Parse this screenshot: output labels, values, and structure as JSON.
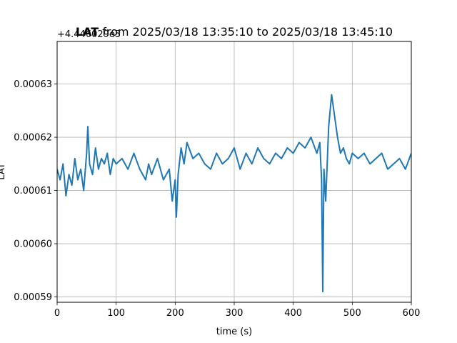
{
  "chart_data": {
    "type": "line",
    "title_bold": "LAT",
    "title_rest": " from 2025/03/18 13:35:10 to 2025/03/18 13:45:10",
    "xlabel": "time (s)",
    "ylabel": "LAT",
    "offset_label": "+4.446029e5",
    "xlim": [
      0,
      600
    ],
    "ylim": [
      0.000589,
      0.000638
    ],
    "x_ticks": [
      0,
      100,
      200,
      300,
      400,
      500,
      600
    ],
    "x_tick_labels": [
      "0",
      "100",
      "200",
      "300",
      "400",
      "500",
      "600"
    ],
    "y_ticks": [
      0.00059,
      0.0006,
      0.00061,
      0.00062,
      0.00063
    ],
    "y_tick_labels": [
      "0.00059",
      "0.00060",
      "0.00061",
      "0.00062",
      "0.00063"
    ],
    "grid": true,
    "line_color": "#1f77b4",
    "series": [
      {
        "x": [
          0,
          5,
          10,
          15,
          20,
          25,
          30,
          35,
          40,
          45,
          50,
          52,
          55,
          60,
          65,
          70,
          75,
          80,
          85,
          90,
          95,
          100,
          110,
          120,
          130,
          140,
          150,
          155,
          160,
          170,
          180,
          190,
          195,
          200,
          202,
          205,
          210,
          215,
          220,
          230,
          240,
          250,
          260,
          270,
          280,
          290,
          300,
          310,
          320,
          330,
          340,
          350,
          360,
          370,
          380,
          390,
          400,
          410,
          420,
          430,
          440,
          445,
          448,
          450,
          452,
          455,
          460,
          465,
          470,
          475,
          480,
          485,
          490,
          495,
          500,
          510,
          520,
          530,
          540,
          550,
          560,
          570,
          580,
          590,
          600
        ],
        "values": [
          0.000614,
          0.000612,
          0.000615,
          0.000609,
          0.000613,
          0.000611,
          0.000616,
          0.000612,
          0.000614,
          0.00061,
          0.000617,
          0.000622,
          0.000615,
          0.000613,
          0.000618,
          0.000614,
          0.000616,
          0.000615,
          0.000617,
          0.000613,
          0.000616,
          0.000615,
          0.000616,
          0.000614,
          0.000617,
          0.000614,
          0.000612,
          0.000615,
          0.000613,
          0.000616,
          0.000612,
          0.000614,
          0.000608,
          0.000612,
          0.000605,
          0.000613,
          0.000618,
          0.000615,
          0.000619,
          0.000616,
          0.000617,
          0.000615,
          0.000614,
          0.000617,
          0.000615,
          0.000616,
          0.000618,
          0.000614,
          0.000617,
          0.000615,
          0.000618,
          0.000616,
          0.000615,
          0.000617,
          0.000616,
          0.000618,
          0.000617,
          0.000619,
          0.000618,
          0.00062,
          0.000617,
          0.000619,
          0.000612,
          0.000591,
          0.000614,
          0.000608,
          0.000622,
          0.000628,
          0.000624,
          0.00062,
          0.000617,
          0.000618,
          0.000616,
          0.000615,
          0.000617,
          0.000616,
          0.000617,
          0.000615,
          0.000616,
          0.000617,
          0.000614,
          0.000615,
          0.000616,
          0.000614,
          0.000617
        ]
      }
    ]
  }
}
